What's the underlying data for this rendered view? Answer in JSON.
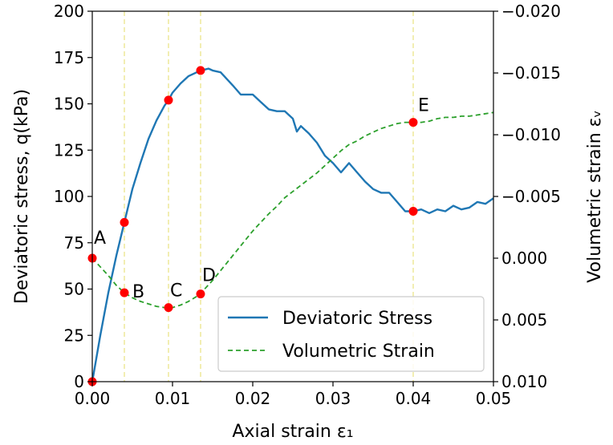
{
  "chart_data": {
    "type": "line",
    "xlabel": "Axial strain ε₁",
    "ylabel_left": "Deviatoric stress, q(kPa)",
    "ylabel_right": "Volumetric strain εᵥ",
    "xlim": [
      0.0,
      0.05
    ],
    "ylim_left": [
      0,
      200
    ],
    "ylim_right": [
      -0.02,
      0.01
    ],
    "right_axis_inverted": true,
    "x_ticks": [
      "0.00",
      "0.01",
      "0.02",
      "0.03",
      "0.04",
      "0.05"
    ],
    "y_left_ticks": [
      "0",
      "25",
      "50",
      "75",
      "100",
      "125",
      "150",
      "175",
      "200"
    ],
    "y_right_ticks": [
      "−0.020",
      "−0.015",
      "−0.010",
      "−0.005",
      "0.000",
      "0.005",
      "0.010"
    ],
    "legend_position": "lower-right",
    "vlines_x": [
      0.004,
      0.0095,
      0.0135,
      0.04
    ],
    "series": [
      {
        "name": "Deviatoric Stress",
        "axis": "left",
        "color": "#1f77b4",
        "style": "solid",
        "x": [
          0.0,
          0.001,
          0.002,
          0.003,
          0.004,
          0.005,
          0.006,
          0.007,
          0.008,
          0.009,
          0.0095,
          0.01,
          0.011,
          0.012,
          0.0135,
          0.0145,
          0.015,
          0.016,
          0.0175,
          0.0185,
          0.019,
          0.02,
          0.021,
          0.022,
          0.023,
          0.024,
          0.025,
          0.0255,
          0.026,
          0.027,
          0.028,
          0.029,
          0.03,
          0.031,
          0.032,
          0.033,
          0.034,
          0.035,
          0.036,
          0.037,
          0.038,
          0.039,
          0.04,
          0.041,
          0.042,
          0.043,
          0.044,
          0.045,
          0.046,
          0.047,
          0.048,
          0.049,
          0.05
        ],
        "y": [
          0,
          25,
          48,
          68,
          86,
          104,
          118,
          131,
          141,
          149,
          152,
          156,
          161,
          165,
          168,
          169,
          168,
          167,
          160,
          155,
          155,
          155,
          151,
          147,
          146,
          146,
          142,
          135,
          138,
          134,
          129,
          122,
          118,
          113,
          118,
          113,
          108,
          104,
          102,
          102,
          97,
          92,
          92,
          93,
          91,
          93,
          92,
          95,
          93,
          94,
          97,
          96,
          99
        ]
      },
      {
        "name": "Volumetric Strain",
        "axis": "right",
        "color": "#2ca02c",
        "style": "dashed",
        "x": [
          0.0,
          0.001,
          0.002,
          0.003,
          0.004,
          0.005,
          0.006,
          0.007,
          0.008,
          0.009,
          0.0095,
          0.01,
          0.011,
          0.012,
          0.0135,
          0.014,
          0.015,
          0.016,
          0.017,
          0.018,
          0.019,
          0.02,
          0.021,
          0.022,
          0.023,
          0.024,
          0.025,
          0.026,
          0.027,
          0.028,
          0.029,
          0.03,
          0.031,
          0.032,
          0.033,
          0.034,
          0.035,
          0.036,
          0.037,
          0.038,
          0.039,
          0.04,
          0.041,
          0.042,
          0.043,
          0.044,
          0.045,
          0.046,
          0.047,
          0.048,
          0.049,
          0.05
        ],
        "y": [
          0.0,
          0.0007,
          0.0014,
          0.0022,
          0.0028,
          0.0032,
          0.0035,
          0.0037,
          0.0039,
          0.004,
          0.004,
          0.004,
          0.0038,
          0.0035,
          0.0029,
          0.0025,
          0.0018,
          0.001,
          0.0002,
          -0.0006,
          -0.0014,
          -0.0022,
          -0.0029,
          -0.0036,
          -0.0042,
          -0.0049,
          -0.0054,
          -0.0059,
          -0.0064,
          -0.0069,
          -0.0075,
          -0.0081,
          -0.0087,
          -0.0092,
          -0.0095,
          -0.0099,
          -0.0102,
          -0.0105,
          -0.0107,
          -0.0109,
          -0.011,
          -0.011,
          -0.011,
          -0.0111,
          -0.0113,
          -0.0114,
          -0.0114,
          -0.0115,
          -0.0115,
          -0.0116,
          -0.0117,
          -0.0118
        ]
      }
    ],
    "points": [
      {
        "series": "Deviatoric Stress",
        "x": 0.0,
        "y": 0
      },
      {
        "series": "Deviatoric Stress",
        "x": 0.004,
        "y": 86
      },
      {
        "series": "Deviatoric Stress",
        "x": 0.0095,
        "y": 152
      },
      {
        "series": "Deviatoric Stress",
        "x": 0.0135,
        "y": 168
      },
      {
        "series": "Deviatoric Stress",
        "x": 0.04,
        "y": 92
      },
      {
        "series": "Volumetric Strain",
        "x": 0.0,
        "y": 0.0,
        "label": "A"
      },
      {
        "series": "Volumetric Strain",
        "x": 0.004,
        "y": 0.0028,
        "label": "B"
      },
      {
        "series": "Volumetric Strain",
        "x": 0.0095,
        "y": 0.004,
        "label": "C"
      },
      {
        "series": "Volumetric Strain",
        "x": 0.0135,
        "y": 0.0029,
        "label": "D"
      },
      {
        "series": "Volumetric Strain",
        "x": 0.04,
        "y": -0.011,
        "label": "E"
      }
    ],
    "colors": {
      "vline": "#eeeaa0",
      "marker": "#ff0000",
      "legend_border": "#cccccc"
    }
  }
}
